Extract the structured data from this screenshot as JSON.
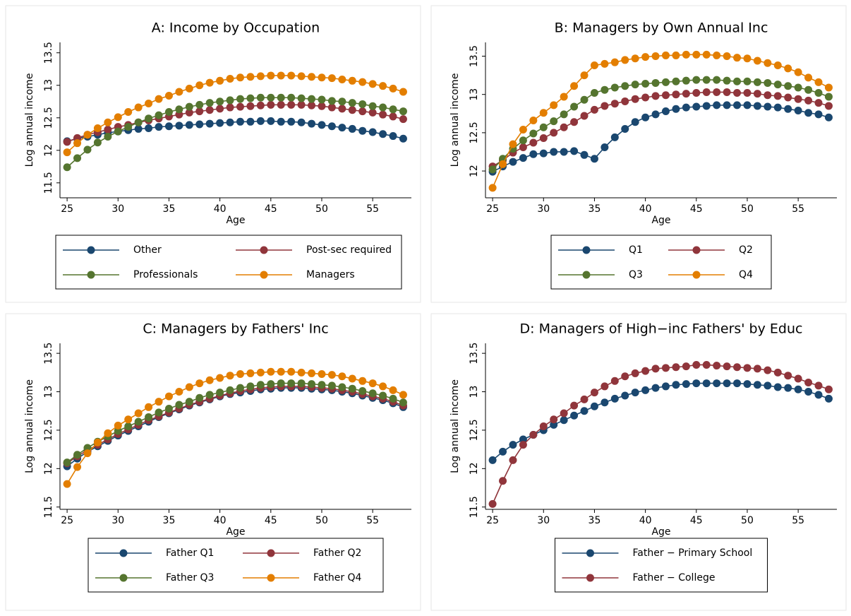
{
  "chart_data": [
    {
      "type": "line",
      "title": "A: Income by Occupation",
      "xlabel": "Age",
      "ylabel": "Log annual income",
      "x": [
        25,
        26,
        27,
        28,
        29,
        30,
        31,
        32,
        33,
        34,
        35,
        36,
        37,
        38,
        39,
        40,
        41,
        42,
        43,
        44,
        45,
        46,
        47,
        48,
        49,
        50,
        51,
        52,
        53,
        54,
        55,
        56,
        57,
        58
      ],
      "xlim": [
        24.3,
        58.8
      ],
      "ylim": [
        11.27,
        13.66
      ],
      "xticks": [
        25,
        30,
        35,
        40,
        45,
        50,
        55
      ],
      "yticks": [
        11.5,
        12,
        12.5,
        13,
        13.5
      ],
      "legend_cols": 2,
      "series": [
        {
          "name": "Other",
          "color": "#1a476f",
          "values": [
            12.14,
            12.18,
            12.21,
            12.24,
            12.27,
            12.29,
            12.31,
            12.33,
            12.34,
            12.36,
            12.37,
            12.38,
            12.39,
            12.4,
            12.41,
            12.42,
            12.43,
            12.44,
            12.44,
            12.45,
            12.45,
            12.44,
            12.44,
            12.43,
            12.41,
            12.39,
            12.37,
            12.35,
            12.33,
            12.3,
            12.28,
            12.25,
            12.22,
            12.18
          ]
        },
        {
          "name": "Post-sec required",
          "color": "#90353b",
          "values": [
            12.13,
            12.19,
            12.24,
            12.28,
            12.32,
            12.36,
            12.39,
            12.43,
            12.46,
            12.49,
            12.52,
            12.55,
            12.58,
            12.6,
            12.62,
            12.64,
            12.66,
            12.67,
            12.68,
            12.69,
            12.7,
            12.7,
            12.7,
            12.7,
            12.69,
            12.68,
            12.66,
            12.64,
            12.62,
            12.6,
            12.58,
            12.55,
            12.52,
            12.48
          ]
        },
        {
          "name": "Professionals",
          "color": "#55752f",
          "values": [
            11.74,
            11.88,
            12.01,
            12.12,
            12.21,
            12.29,
            12.36,
            12.43,
            12.49,
            12.54,
            12.59,
            12.63,
            12.67,
            12.7,
            12.73,
            12.75,
            12.77,
            12.79,
            12.8,
            12.81,
            12.81,
            12.81,
            12.81,
            12.8,
            12.79,
            12.78,
            12.76,
            12.75,
            12.73,
            12.71,
            12.68,
            12.66,
            12.63,
            12.6
          ]
        },
        {
          "name": "Managers",
          "color": "#e37e00",
          "values": [
            11.97,
            12.11,
            12.24,
            12.34,
            12.43,
            12.51,
            12.59,
            12.66,
            12.72,
            12.79,
            12.84,
            12.9,
            12.95,
            13.0,
            13.04,
            13.07,
            13.1,
            13.12,
            13.13,
            13.14,
            13.15,
            13.15,
            13.15,
            13.14,
            13.13,
            13.12,
            13.11,
            13.09,
            13.07,
            13.05,
            13.02,
            12.99,
            12.95,
            12.9
          ]
        }
      ]
    },
    {
      "type": "line",
      "title": "B: Managers by Own Annual Inc",
      "xlabel": "Age",
      "ylabel": "Log annual income",
      "x": [
        25,
        26,
        27,
        28,
        29,
        30,
        31,
        32,
        33,
        34,
        35,
        36,
        37,
        38,
        39,
        40,
        41,
        42,
        43,
        44,
        45,
        46,
        47,
        48,
        49,
        50,
        51,
        52,
        53,
        54,
        55,
        56,
        57,
        58
      ],
      "xlim": [
        24.3,
        58.8
      ],
      "ylim": [
        11.65,
        13.68
      ],
      "xticks": [
        25,
        30,
        35,
        40,
        45,
        50,
        55
      ],
      "yticks": [
        12,
        12.5,
        13,
        13.5
      ],
      "legend_cols": 2,
      "series": [
        {
          "name": "Q1",
          "color": "#1a476f",
          "values": [
            11.99,
            12.06,
            12.12,
            12.17,
            12.22,
            12.23,
            12.25,
            12.25,
            12.26,
            12.21,
            12.16,
            12.31,
            12.44,
            12.55,
            12.64,
            12.7,
            12.74,
            12.78,
            12.81,
            12.83,
            12.84,
            12.85,
            12.86,
            12.86,
            12.86,
            12.86,
            12.85,
            12.84,
            12.83,
            12.81,
            12.79,
            12.76,
            12.74,
            12.7
          ]
        },
        {
          "name": "Q2",
          "color": "#90353b",
          "values": [
            12.06,
            12.14,
            12.24,
            12.31,
            12.37,
            12.43,
            12.5,
            12.57,
            12.64,
            12.72,
            12.8,
            12.85,
            12.88,
            12.91,
            12.94,
            12.96,
            12.98,
            12.99,
            13.0,
            13.01,
            13.02,
            13.03,
            13.03,
            13.03,
            13.02,
            13.02,
            13.01,
            12.99,
            12.98,
            12.96,
            12.94,
            12.92,
            12.89,
            12.85
          ]
        },
        {
          "name": "Q3",
          "color": "#55752f",
          "values": [
            12.02,
            12.16,
            12.29,
            12.4,
            12.49,
            12.57,
            12.65,
            12.74,
            12.84,
            12.93,
            13.02,
            13.06,
            13.09,
            13.11,
            13.13,
            13.14,
            13.15,
            13.16,
            13.17,
            13.18,
            13.19,
            13.19,
            13.19,
            13.18,
            13.17,
            13.17,
            13.16,
            13.15,
            13.13,
            13.11,
            13.09,
            13.06,
            13.02,
            12.97
          ]
        },
        {
          "name": "Q4",
          "color": "#e37e00",
          "values": [
            11.78,
            12.09,
            12.35,
            12.54,
            12.66,
            12.76,
            12.86,
            12.97,
            13.11,
            13.25,
            13.38,
            13.4,
            13.42,
            13.45,
            13.47,
            13.49,
            13.5,
            13.51,
            13.51,
            13.52,
            13.52,
            13.52,
            13.51,
            13.5,
            13.48,
            13.47,
            13.44,
            13.41,
            13.38,
            13.34,
            13.29,
            13.22,
            13.16,
            13.09
          ]
        }
      ]
    },
    {
      "type": "line",
      "title": "C: Managers by Fathers' Inc",
      "xlabel": "Age",
      "ylabel": "Log annual income",
      "x": [
        25,
        26,
        27,
        28,
        29,
        30,
        31,
        32,
        33,
        34,
        35,
        36,
        37,
        38,
        39,
        40,
        41,
        42,
        43,
        44,
        45,
        46,
        47,
        48,
        49,
        50,
        51,
        52,
        53,
        54,
        55,
        56,
        57,
        58
      ],
      "xlim": [
        24.3,
        58.8
      ],
      "ylim": [
        11.47,
        13.63
      ],
      "xticks": [
        25,
        30,
        35,
        40,
        45,
        50,
        55
      ],
      "yticks": [
        11.5,
        12,
        12.5,
        13,
        13.5
      ],
      "legend_cols": 2,
      "series": [
        {
          "name": "Father Q1",
          "color": "#1a476f",
          "values": [
            12.03,
            12.13,
            12.22,
            12.29,
            12.36,
            12.43,
            12.49,
            12.55,
            12.61,
            12.67,
            12.72,
            12.77,
            12.82,
            12.86,
            12.9,
            12.94,
            12.97,
            12.99,
            13.01,
            13.03,
            13.04,
            13.05,
            13.05,
            13.05,
            13.04,
            13.03,
            13.02,
            13.0,
            12.98,
            12.95,
            12.92,
            12.89,
            12.85,
            12.8
          ]
        },
        {
          "name": "Father Q2",
          "color": "#90353b",
          "values": [
            12.07,
            12.16,
            12.24,
            12.31,
            12.38,
            12.45,
            12.51,
            12.57,
            12.63,
            12.68,
            12.73,
            12.78,
            12.83,
            12.87,
            12.91,
            12.95,
            12.98,
            13.01,
            13.03,
            13.05,
            13.06,
            13.07,
            13.07,
            13.07,
            13.06,
            13.05,
            13.04,
            13.02,
            13.0,
            12.97,
            12.94,
            12.91,
            12.87,
            12.82
          ]
        },
        {
          "name": "Father Q3",
          "color": "#55752f",
          "values": [
            12.08,
            12.18,
            12.27,
            12.35,
            12.42,
            12.49,
            12.55,
            12.61,
            12.67,
            12.73,
            12.78,
            12.83,
            12.87,
            12.92,
            12.96,
            12.99,
            13.02,
            13.05,
            13.07,
            13.09,
            13.1,
            13.11,
            13.11,
            13.11,
            13.1,
            13.09,
            13.08,
            13.06,
            13.04,
            13.01,
            12.98,
            12.95,
            12.91,
            12.86
          ]
        },
        {
          "name": "Father Q4",
          "color": "#e37e00",
          "values": [
            11.8,
            12.02,
            12.2,
            12.34,
            12.46,
            12.56,
            12.64,
            12.72,
            12.8,
            12.87,
            12.94,
            13.0,
            13.06,
            13.11,
            13.15,
            13.18,
            13.21,
            13.23,
            13.24,
            13.25,
            13.26,
            13.26,
            13.26,
            13.25,
            13.24,
            13.23,
            13.22,
            13.2,
            13.17,
            13.14,
            13.11,
            13.07,
            13.02,
            12.96
          ]
        }
      ]
    },
    {
      "type": "line",
      "title": "D: Managers of High−inc Fathers' by Educ",
      "xlabel": "Age",
      "ylabel": "Log annual income",
      "x": [
        25,
        26,
        27,
        28,
        29,
        30,
        31,
        32,
        33,
        34,
        35,
        36,
        37,
        38,
        39,
        40,
        41,
        42,
        43,
        44,
        45,
        46,
        47,
        48,
        49,
        50,
        51,
        52,
        53,
        54,
        55,
        56,
        57,
        58
      ],
      "xlim": [
        24.3,
        58.8
      ],
      "ylim": [
        11.47,
        13.63
      ],
      "xticks": [
        25,
        30,
        35,
        40,
        45,
        50,
        55
      ],
      "yticks": [
        11.5,
        12,
        12.5,
        13,
        13.5
      ],
      "legend_cols": 1,
      "series": [
        {
          "name": "Father − Primary School",
          "color": "#1a476f",
          "values": [
            12.11,
            12.22,
            12.31,
            12.38,
            12.44,
            12.5,
            12.57,
            12.63,
            12.69,
            12.75,
            12.81,
            12.86,
            12.91,
            12.95,
            12.99,
            13.02,
            13.05,
            13.07,
            13.09,
            13.1,
            13.11,
            13.11,
            13.11,
            13.11,
            13.11,
            13.1,
            13.09,
            13.08,
            13.06,
            13.05,
            13.03,
            13.0,
            12.96,
            12.91
          ]
        },
        {
          "name": "Father − College",
          "color": "#90353b",
          "values": [
            11.54,
            11.84,
            12.11,
            12.31,
            12.44,
            12.55,
            12.64,
            12.72,
            12.82,
            12.9,
            12.99,
            13.07,
            13.14,
            13.2,
            13.24,
            13.27,
            13.3,
            13.31,
            13.32,
            13.33,
            13.35,
            13.35,
            13.34,
            13.33,
            13.32,
            13.31,
            13.3,
            13.28,
            13.25,
            13.21,
            13.17,
            13.12,
            13.08,
            13.03
          ]
        }
      ]
    }
  ]
}
